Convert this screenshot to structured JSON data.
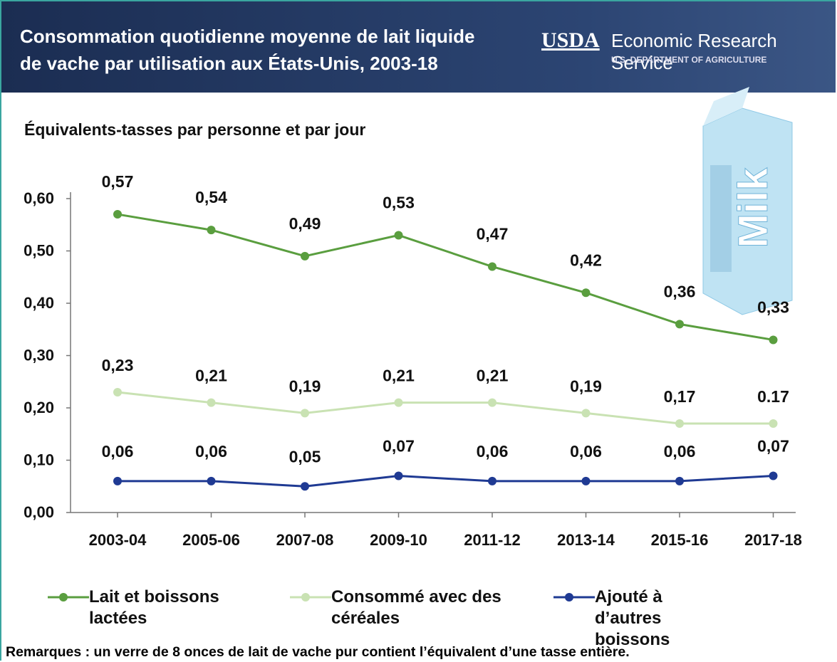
{
  "header": {
    "title_lines": [
      "Consommation quotidienne moyenne de lait liquide",
      "de vache par utilisation aux États-Unis, 2003-18"
    ],
    "logo": "USDA",
    "agency": "Economic Research Service",
    "department": "U.S. DEPARTMENT OF AGRICULTURE"
  },
  "chart_data": {
    "type": "line",
    "y_label": "Équivalents-tasses par personne et par jour",
    "illustration_text": "Milk",
    "categories": [
      "2003-04",
      "2005-06",
      "2007-08",
      "2009-10",
      "2011-12",
      "2013-14",
      "2015-16",
      "2017-18"
    ],
    "series": [
      {
        "name": "Lait et boissons lactées",
        "color": "#5a9e3f",
        "values": [
          0.57,
          0.54,
          0.49,
          0.53,
          0.47,
          0.42,
          0.36,
          0.33
        ],
        "value_labels": [
          "0,57",
          "0,54",
          "0,49",
          "0,53",
          "0,47",
          "0,42",
          "0,36",
          "0,33"
        ]
      },
      {
        "name": "Consommé avec des céréales",
        "color": "#c9e2b3",
        "values": [
          0.23,
          0.21,
          0.19,
          0.21,
          0.21,
          0.19,
          0.17,
          0.17
        ],
        "value_labels": [
          "0,23",
          "0,21",
          "0,19",
          "0,21",
          "0,21",
          "0,19",
          "0,17",
          "0.17"
        ]
      },
      {
        "name": "Ajouté à d’autres boissons",
        "color": "#1f3a93",
        "values": [
          0.06,
          0.06,
          0.05,
          0.07,
          0.06,
          0.06,
          0.06,
          0.07
        ],
        "value_labels": [
          "0,06",
          "0,06",
          "0,05",
          "0,07",
          "0,06",
          "0,06",
          "0,06",
          "0,07"
        ]
      }
    ],
    "ylim": [
      0,
      0.6
    ],
    "yticks": [
      {
        "value": 0,
        "label": "0,00"
      },
      {
        "value": 0.1,
        "label": "0,10"
      },
      {
        "value": 0.2,
        "label": "0,20"
      },
      {
        "value": 0.3,
        "label": "0,30"
      },
      {
        "value": 0.4,
        "label": "0,40"
      },
      {
        "value": 0.5,
        "label": "0,50"
      },
      {
        "value": 0.6,
        "label": "0,60"
      }
    ],
    "note": "Remarques : un verre de 8 onces de lait de vache pur contient l’équivalent d’une tasse entière."
  }
}
